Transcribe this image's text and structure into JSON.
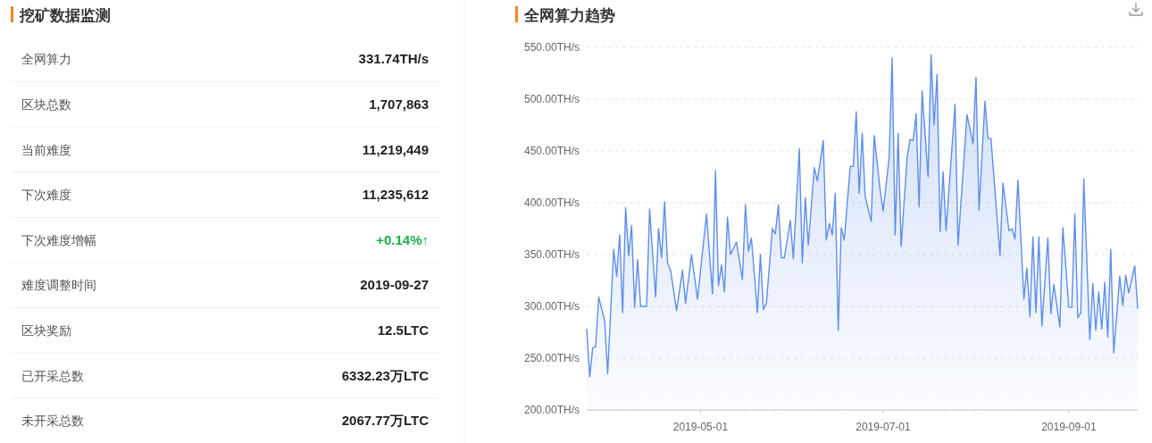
{
  "chart_data": [
    {
      "type": "other",
      "title": "挖矿数据监测",
      "annotations": [
        "全网算力",
        "331.74TH/s",
        "区块总数",
        "1,707,863",
        "当前难度",
        "11,219,449",
        "下次难度",
        "11,235,612",
        "下次难度增幅",
        "+0.14%↑",
        "难度调整时间",
        "2019-09-27",
        "区块奖励",
        "12.5LTC",
        "已开采总数",
        "6332.23万LTC",
        "未开采总数",
        "2067.77万LTC"
      ],
      "colors": [
        "#555555",
        "#222222",
        "#555555",
        "#222222",
        "#555555",
        "#222222",
        "#555555",
        "#222222",
        "#555555",
        "#1aad4b",
        "#555555",
        "#222222",
        "#555555",
        "#222222",
        "#555555",
        "#222222",
        "#555555",
        "#222222"
      ]
    },
    {
      "type": "area",
      "title": "全网算力趋势",
      "color": "#5e8ee8",
      "x": [
        "2019-03-24",
        "2019-03-25",
        "2019-03-26",
        "2019-03-27",
        "2019-03-28",
        "2019-03-30",
        "2019-03-31",
        "2019-04-02",
        "2019-04-03",
        "2019-04-04",
        "2019-04-05",
        "2019-04-06",
        "2019-04-07",
        "2019-04-08",
        "2019-04-09",
        "2019-04-10",
        "2019-04-11",
        "2019-04-13",
        "2019-04-14",
        "2019-04-16",
        "2019-04-17",
        "2019-04-18",
        "2019-04-19",
        "2019-04-20",
        "2019-04-21",
        "2019-04-23",
        "2019-04-25",
        "2019-04-26",
        "2019-04-28",
        "2019-04-30",
        "2019-05-03",
        "2019-05-05",
        "2019-05-06",
        "2019-05-07",
        "2019-05-08",
        "2019-05-09",
        "2019-05-10",
        "2019-05-11",
        "2019-05-13",
        "2019-05-15",
        "2019-05-16",
        "2019-05-17",
        "2019-05-18",
        "2019-05-20",
        "2019-05-21",
        "2019-05-22",
        "2019-05-23",
        "2019-05-25",
        "2019-05-26",
        "2019-05-27",
        "2019-05-28",
        "2019-05-29",
        "2019-05-31",
        "2019-06-01",
        "2019-06-03",
        "2019-06-04",
        "2019-06-05",
        "2019-06-06",
        "2019-06-08",
        "2019-06-09",
        "2019-06-11",
        "2019-06-12",
        "2019-06-13",
        "2019-06-14",
        "2019-06-15",
        "2019-06-16",
        "2019-06-17",
        "2019-06-18",
        "2019-06-20",
        "2019-06-21",
        "2019-06-22",
        "2019-06-23",
        "2019-06-24",
        "2019-06-25",
        "2019-06-27",
        "2019-06-28",
        "2019-06-30",
        "2019-07-01",
        "2019-07-03",
        "2019-07-04",
        "2019-07-05",
        "2019-07-06",
        "2019-07-07",
        "2019-07-09",
        "2019-07-10",
        "2019-07-11",
        "2019-07-12",
        "2019-07-13",
        "2019-07-14",
        "2019-07-16",
        "2019-07-17",
        "2019-07-18",
        "2019-07-19",
        "2019-07-20",
        "2019-07-21",
        "2019-07-22",
        "2019-07-25",
        "2019-07-26",
        "2019-07-29",
        "2019-07-31",
        "2019-08-01",
        "2019-08-02",
        "2019-08-04",
        "2019-08-05",
        "2019-08-06",
        "2019-08-09",
        "2019-08-10",
        "2019-08-12",
        "2019-08-13",
        "2019-08-14",
        "2019-08-15",
        "2019-08-17",
        "2019-08-18",
        "2019-08-19",
        "2019-08-20",
        "2019-08-21",
        "2019-08-22",
        "2019-08-23",
        "2019-08-25",
        "2019-08-26",
        "2019-08-27",
        "2019-08-29",
        "2019-08-30",
        "2019-09-01",
        "2019-09-02",
        "2019-09-03",
        "2019-09-04",
        "2019-09-05",
        "2019-09-06",
        "2019-09-08",
        "2019-09-09",
        "2019-09-10",
        "2019-09-11",
        "2019-09-12",
        "2019-09-13",
        "2019-09-14",
        "2019-09-15",
        "2019-09-16",
        "2019-09-18",
        "2019-09-19",
        "2019-09-20",
        "2019-09-21",
        "2019-09-23",
        "2019-09-24"
      ],
      "values": [
        278,
        232,
        260,
        261,
        309,
        286,
        235,
        355,
        329,
        369,
        294,
        395,
        349,
        378,
        299,
        345,
        300,
        300,
        394,
        309,
        375,
        347,
        401,
        342,
        335,
        296,
        335,
        303,
        350,
        307,
        389,
        312,
        431,
        320,
        340,
        314,
        386,
        350,
        362,
        326,
        398,
        353,
        366,
        294,
        350,
        297,
        303,
        375,
        370,
        398,
        347,
        347,
        383,
        346,
        452,
        342,
        405,
        359,
        434,
        421,
        460,
        364,
        380,
        369,
        409,
        277,
        376,
        364,
        435,
        435,
        488,
        409,
        467,
        406,
        382,
        465,
        412,
        392,
        444,
        540,
        369,
        467,
        358,
        444,
        461,
        460,
        486,
        396,
        508,
        425,
        543,
        475,
        524,
        372,
        430,
        373,
        495,
        359,
        485,
        457,
        521,
        393,
        498,
        462,
        462,
        349,
        419,
        373,
        375,
        365,
        422,
        307,
        337,
        290,
        367,
        294,
        367,
        281,
        366,
        293,
        321,
        280,
        376,
        299,
        299,
        389,
        289,
        294,
        423,
        268,
        322,
        277,
        314,
        278,
        323,
        270,
        355,
        255,
        329,
        301,
        330,
        313,
        339,
        298
      ],
      "xlim": [
        "2019-03-24",
        "2019-09-24"
      ],
      "xticks": [
        "2019-05-01",
        "2019-07-01",
        "2019-09-01"
      ],
      "ylim": [
        200,
        550
      ],
      "yticks": [
        {
          "value": 200,
          "label": "200.00TH/s"
        },
        {
          "value": 250,
          "label": "250.00TH/s"
        },
        {
          "value": 300,
          "label": "300.00TH/s"
        },
        {
          "value": 350,
          "label": "350.00TH/s"
        },
        {
          "value": 400,
          "label": "400.00TH/s"
        },
        {
          "value": 450,
          "label": "450.00TH/s"
        },
        {
          "value": 500,
          "label": "500.00TH/s"
        },
        {
          "value": 550,
          "label": "550.00TH/s"
        }
      ],
      "grid": "y"
    }
  ]
}
